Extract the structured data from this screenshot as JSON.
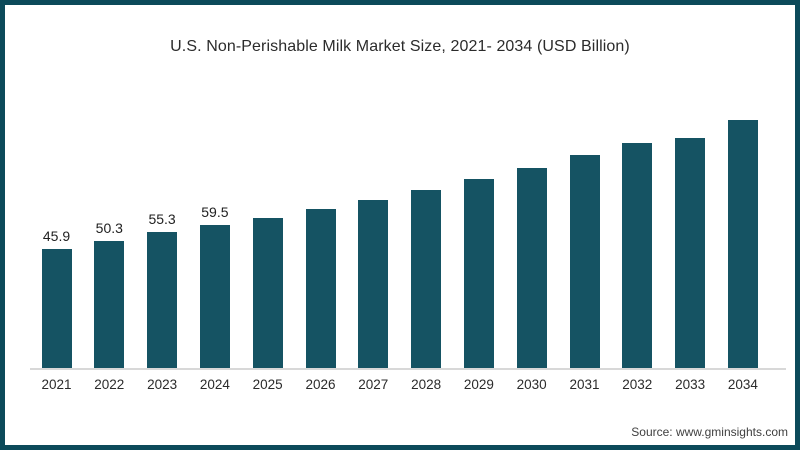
{
  "page": {
    "border_color": "#0c4a5a",
    "background_color": "#ffffff"
  },
  "chart_data": {
    "type": "bar",
    "title": "U.S. Non-Perishable Milk Market Size, 2021- 2034 (USD Billion)",
    "categories": [
      "2021",
      "2022",
      "2023",
      "2024",
      "2025",
      "2026",
      "2027",
      "2028",
      "2029",
      "2030",
      "2031",
      "2032",
      "2033",
      "2034"
    ],
    "values": [
      45.9,
      50.3,
      55.3,
      59.5,
      63.3,
      68.0,
      73.0,
      78.5,
      84.3,
      90.4,
      97.6,
      104.4,
      107.2,
      116.6
    ],
    "value_labels": [
      "45.9",
      "50.3",
      "55.3",
      "59.5",
      "",
      "",
      "",
      "",
      "",
      "",
      "",
      "",
      "",
      ""
    ],
    "bar_color": "#155363",
    "axis_line_color": "#d8d8d8",
    "xlabel": "",
    "ylabel": "",
    "ylim": [
      -19.1,
      130
    ],
    "gridlines": false,
    "legend": false
  },
  "source": {
    "text": "Source: www.gminsights.com"
  }
}
